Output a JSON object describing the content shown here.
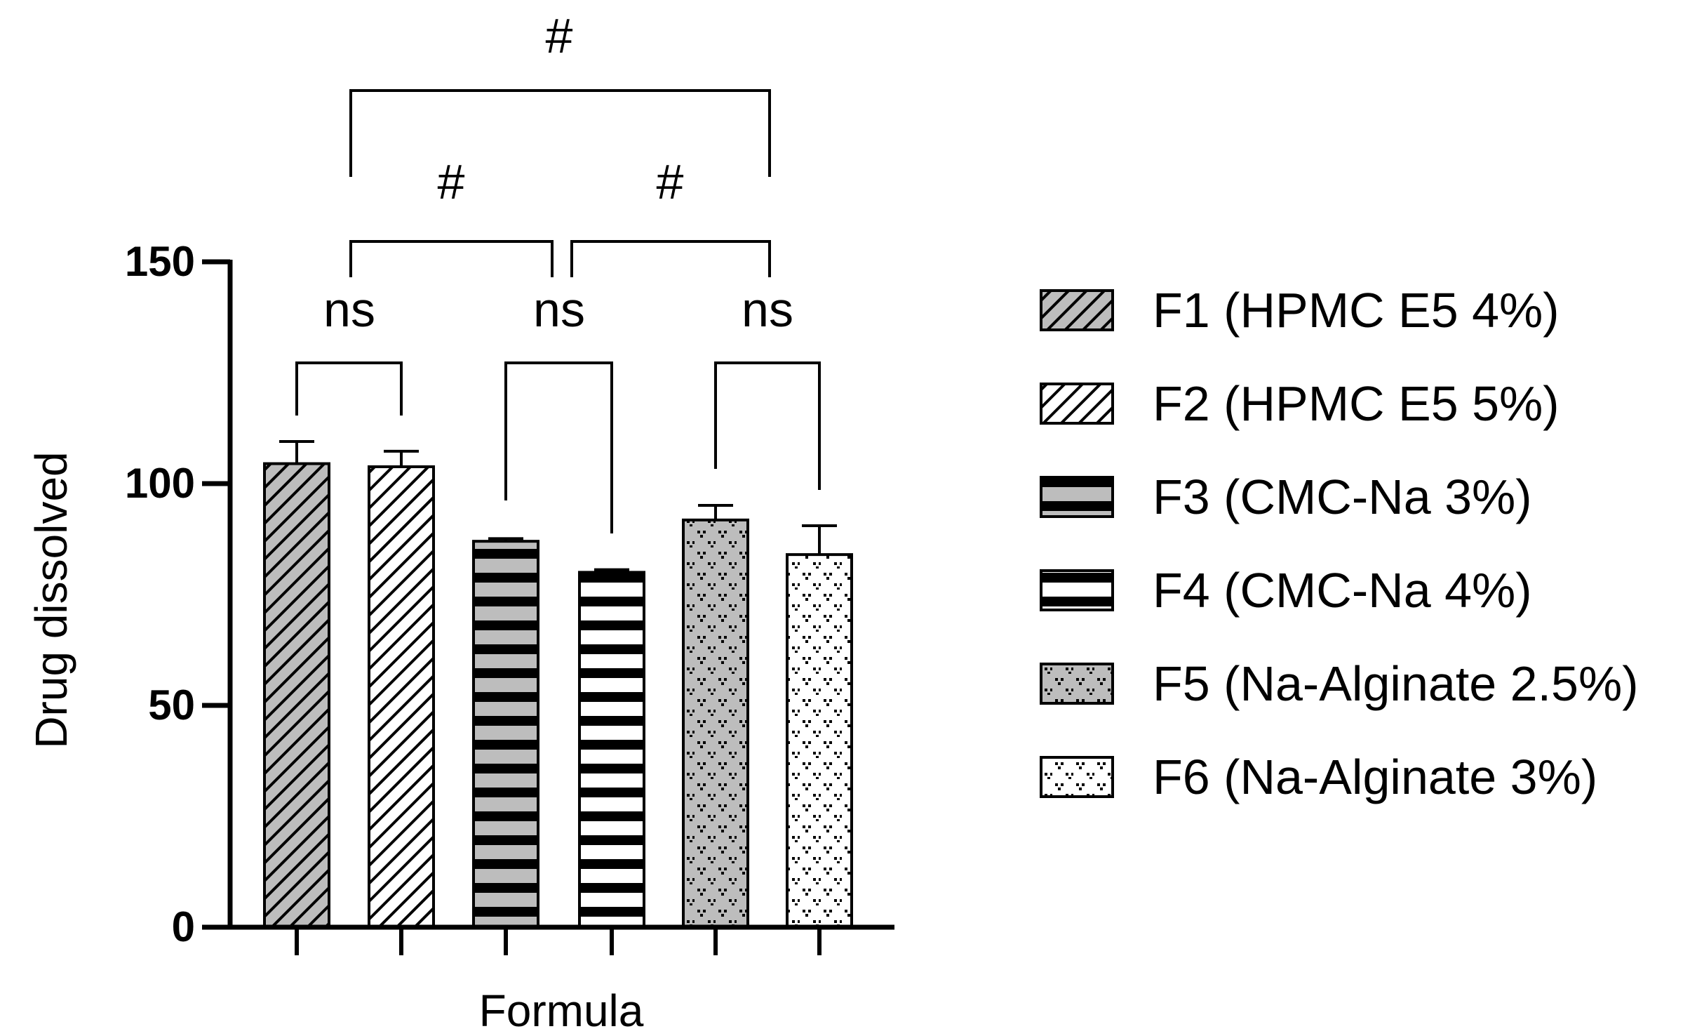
{
  "chart_data": {
    "type": "bar",
    "xlabel": "Formula",
    "ylabel": "Drug dissolved",
    "ylim": [
      0,
      150
    ],
    "yticks": [
      "0",
      "50",
      "100",
      "150"
    ],
    "grid": false,
    "legend_position": "right",
    "series": [
      {
        "name": "F1 (HPMC E5 4%)",
        "value": 104.5,
        "error": 5,
        "pattern": "diag-dark"
      },
      {
        "name": "F2 (HPMC E5 5%)",
        "value": 103.8,
        "error": 3.5,
        "pattern": "diag-light"
      },
      {
        "name": "F3 (CMC-Na 3%)",
        "value": 87,
        "error": 0.6,
        "pattern": "stripes-gray"
      },
      {
        "name": "F4 (CMC-Na 4%)",
        "value": 80,
        "error": 0.6,
        "pattern": "stripes-white"
      },
      {
        "name": "F5 (Na-Alginate 2.5%)",
        "value": 91.8,
        "error": 3.3,
        "pattern": "dots-gray"
      },
      {
        "name": "F6 (Na-Alginate 3%)",
        "value": 84,
        "error": 6.5,
        "pattern": "dots-white"
      }
    ],
    "comparisons": [
      {
        "from": 0,
        "to": 1,
        "label": "ns"
      },
      {
        "from": 2,
        "to": 3,
        "label": "ns"
      },
      {
        "from": 4,
        "to": 5,
        "label": "ns"
      },
      {
        "from": 0,
        "to": 2,
        "label": "#"
      },
      {
        "from": 2,
        "to": 4,
        "label": "#"
      },
      {
        "from": 0,
        "to": 4,
        "label": "#"
      }
    ],
    "colors": {
      "axis": "#000000",
      "dark_fill": "#bdbdbd",
      "light_fill": "#ffffff",
      "stripe": "#000000"
    }
  }
}
